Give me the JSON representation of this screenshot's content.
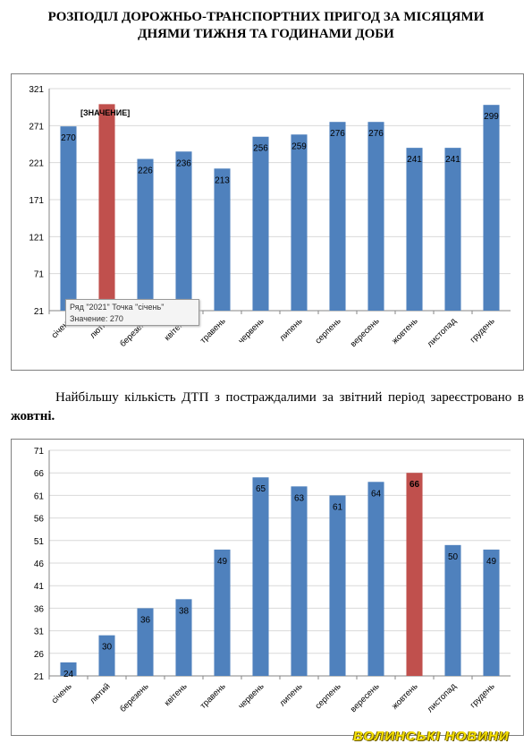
{
  "title_line1": "РОЗПОДІЛ ДОРОЖНЬО-ТРАНСПОРТНИХ ПРИГОД ЗА МІСЯЦЯМИ",
  "title_line2": "ДНЯМИ ТИЖНЯ ТА ГОДИНАМИ ДОБИ",
  "paragraph_text": "Найбільшу кількість ДТП з постраждалими за звітний період зареєстровано в ",
  "paragraph_bold": "жовтні.",
  "tooltip": {
    "line1": "Ряд \"2021\" Точка \"січень\"",
    "line2": "Значение: 270"
  },
  "placeholder_label": "[ЗНАЧЕНИЕ]",
  "watermark": "ВОЛИНСЬКІ НОВИНИ",
  "colors": {
    "bar": "#4f81bd",
    "highlight": "#c0504d",
    "grid": "#d9d9d9"
  },
  "chart_data": [
    {
      "type": "bar",
      "categories": [
        "січень",
        "лютий",
        "березень",
        "квітень",
        "травень",
        "червень",
        "липень",
        "серпень",
        "вересень",
        "жовтень",
        "листопад",
        "грудень"
      ],
      "values": [
        270,
        300,
        226,
        236,
        213,
        256,
        259,
        276,
        276,
        241,
        241,
        299
      ],
      "labels": [
        "270",
        "",
        "226",
        "236",
        "213",
        "256",
        "259",
        "276",
        "276",
        "241",
        "241",
        "299"
      ],
      "highlight_index": 1,
      "yticks": [
        21,
        71,
        121,
        171,
        221,
        271,
        321
      ],
      "ylim": [
        21,
        321
      ],
      "grid": true
    },
    {
      "type": "bar",
      "categories": [
        "січень",
        "лютий",
        "березень",
        "квітень",
        "травень",
        "червень",
        "липень",
        "серпень",
        "вересень",
        "жовтень",
        "листопад",
        "грудень"
      ],
      "values": [
        24,
        30,
        36,
        38,
        49,
        65,
        63,
        61,
        64,
        66,
        50,
        49
      ],
      "labels": [
        "24",
        "30",
        "36",
        "38",
        "49",
        "65",
        "63",
        "61",
        "64",
        "66",
        "50",
        "49"
      ],
      "highlight_index": 9,
      "yticks": [
        21,
        26,
        31,
        36,
        41,
        46,
        51,
        56,
        61,
        66,
        71
      ],
      "ylim": [
        21,
        71
      ],
      "grid": true
    }
  ]
}
